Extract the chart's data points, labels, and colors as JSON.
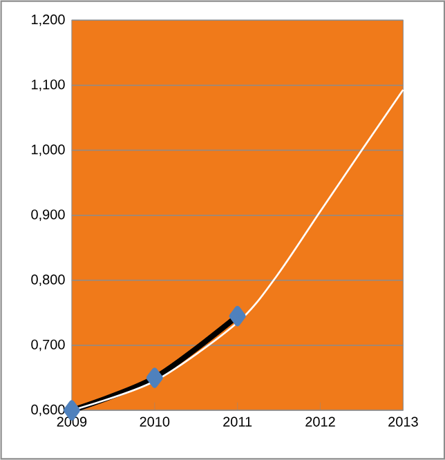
{
  "chart_data": {
    "type": "line",
    "x": [
      2009,
      2010,
      2011
    ],
    "series": [
      {
        "color": "#000000",
        "marker": "diamond",
        "values": [
          0.6,
          0.65,
          0.745
        ]
      },
      {
        "color": "#ffffff",
        "marker": "none",
        "x": [
          2009,
          2010,
          2011,
          2011.47,
          2012,
          2012.5,
          2013
        ],
        "values": [
          0.6,
          0.645,
          0.735,
          0.806,
          0.906,
          1.0,
          1.093
        ]
      }
    ],
    "xlim": [
      2009,
      2013
    ],
    "xticks": [
      2009,
      2010,
      2011,
      2012,
      2013
    ],
    "ylim": [
      0.6,
      1.2
    ],
    "yticks": [
      {
        "value": 0.6,
        "label": "0,600"
      },
      {
        "value": 0.7,
        "label": "0,700"
      },
      {
        "value": 0.8,
        "label": "0,800"
      },
      {
        "value": 0.9,
        "label": "0,900"
      },
      {
        "value": 1.0,
        "label": "1,000"
      },
      {
        "value": 1.1,
        "label": "1,100"
      },
      {
        "value": 1.2,
        "label": "1,200"
      }
    ],
    "grid": "y"
  }
}
